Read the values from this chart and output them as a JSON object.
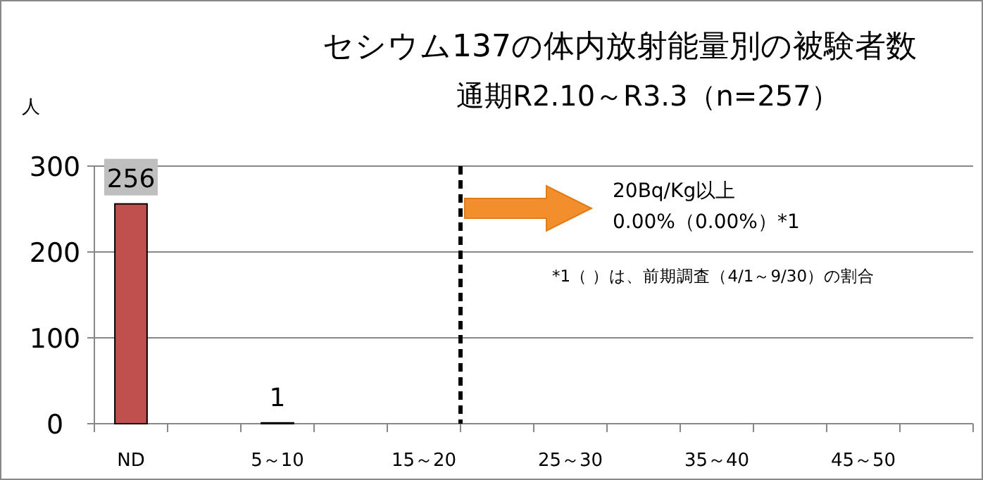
{
  "chart_data": {
    "type": "bar",
    "title": "セシウム137の体内放射能量別の被験者数",
    "subtitle": "通期R2.10～R3.3（n=257）",
    "ylabel": "人",
    "categories": [
      "ND",
      null,
      "5～10",
      null,
      "15～20",
      null,
      "25～30",
      null,
      "35～40",
      null,
      "45～50",
      null
    ],
    "values": [
      256,
      0,
      1,
      0,
      0,
      0,
      0,
      0,
      0,
      0,
      0,
      0
    ],
    "value_labels": [
      "256",
      null,
      "1",
      null,
      null,
      null,
      null,
      null,
      null,
      null,
      null,
      null
    ],
    "color": "#c0504d",
    "ylim": [
      0,
      300
    ],
    "yticks": [
      0,
      100,
      200,
      300
    ],
    "grid": "y",
    "annotations": [
      "20Bq/Kg以上",
      "0.00%（0.00%）*1",
      "*1（ ）は、前期調査（4/1～9/30）の割合"
    ]
  }
}
